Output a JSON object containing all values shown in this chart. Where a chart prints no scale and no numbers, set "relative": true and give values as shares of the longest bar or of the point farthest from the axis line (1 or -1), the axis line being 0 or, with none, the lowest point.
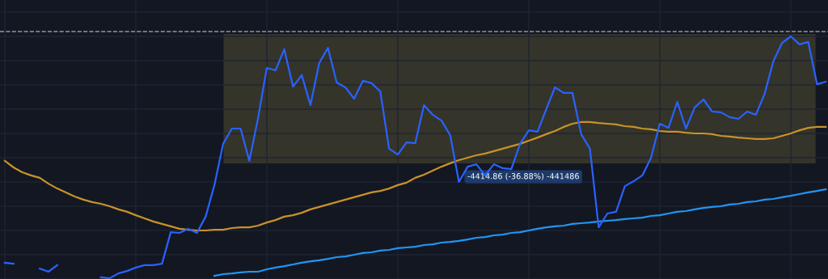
{
  "chart_data": {
    "type": "line",
    "relative": true,
    "grid": true,
    "tick_labels": false,
    "marker": "none",
    "line_style": "solid",
    "categories": [
      null,
      null,
      null,
      null,
      null,
      null,
      null,
      null,
      null,
      null,
      null,
      null,
      null,
      null,
      null,
      null,
      null,
      null,
      null,
      null,
      null,
      null,
      null,
      null,
      null,
      null,
      null,
      null,
      null,
      null,
      null,
      null,
      null,
      null,
      null,
      null,
      null,
      null,
      null,
      null,
      null,
      null,
      null,
      null,
      null,
      null,
      null,
      null,
      null,
      null,
      null,
      null,
      null,
      null,
      null,
      null,
      null,
      null,
      null,
      null,
      null,
      null,
      null,
      null,
      null,
      null,
      null,
      null,
      null,
      null,
      null,
      null,
      null,
      null,
      null,
      null,
      null,
      null,
      null,
      null,
      null,
      null,
      null,
      null,
      null,
      null,
      null,
      null,
      null,
      null,
      null,
      null,
      null,
      null,
      null
    ],
    "series": [
      {
        "color": "#c8922a",
        "values": [
          0.487,
          0.46,
          0.44,
          0.427,
          0.417,
          0.393,
          0.373,
          0.357,
          0.34,
          0.327,
          0.317,
          0.31,
          0.3,
          0.287,
          0.277,
          0.263,
          0.25,
          0.237,
          0.227,
          0.217,
          0.207,
          0.203,
          0.2,
          0.2,
          0.203,
          0.203,
          0.21,
          0.213,
          0.213,
          0.22,
          0.233,
          0.243,
          0.257,
          0.263,
          0.273,
          0.287,
          0.297,
          0.307,
          0.317,
          0.327,
          0.337,
          0.347,
          0.357,
          0.363,
          0.373,
          0.387,
          0.397,
          0.417,
          0.43,
          0.447,
          0.463,
          0.477,
          0.49,
          0.5,
          0.51,
          0.517,
          0.527,
          0.537,
          0.547,
          0.557,
          0.57,
          0.583,
          0.597,
          0.61,
          0.627,
          0.64,
          0.647,
          0.647,
          0.643,
          0.64,
          0.637,
          0.63,
          0.627,
          0.62,
          0.617,
          0.61,
          0.607,
          0.607,
          0.603,
          0.6,
          0.6,
          0.597,
          0.59,
          0.587,
          0.583,
          0.58,
          0.577,
          0.577,
          0.58,
          0.59,
          0.6,
          0.613,
          0.623,
          0.627,
          0.627
        ]
      },
      {
        "color": "#2196f3",
        "values": [
          null,
          null,
          null,
          null,
          null,
          null,
          null,
          null,
          null,
          null,
          null,
          null,
          null,
          null,
          null,
          null,
          null,
          null,
          null,
          null,
          null,
          null,
          null,
          null,
          0.013,
          0.02,
          0.023,
          0.027,
          0.03,
          0.03,
          0.04,
          0.047,
          0.053,
          0.06,
          0.067,
          0.073,
          0.077,
          0.083,
          0.09,
          0.093,
          0.1,
          0.107,
          0.11,
          0.117,
          0.12,
          0.127,
          0.13,
          0.133,
          0.14,
          0.143,
          0.15,
          0.153,
          0.157,
          0.163,
          0.17,
          0.173,
          0.18,
          0.183,
          0.19,
          0.193,
          0.2,
          0.207,
          0.213,
          0.217,
          0.22,
          0.227,
          0.23,
          0.233,
          0.237,
          0.24,
          0.243,
          0.247,
          0.25,
          0.253,
          0.26,
          0.263,
          0.27,
          0.277,
          0.28,
          0.287,
          0.293,
          0.297,
          0.3,
          0.307,
          0.31,
          0.317,
          0.32,
          0.327,
          0.33,
          0.337,
          0.343,
          0.35,
          0.357,
          0.363,
          0.37
        ]
      },
      {
        "color": "#2962ff",
        "values": [
          0.067,
          0.063,
          null,
          null,
          0.043,
          0.03,
          0.057,
          null,
          null,
          null,
          null,
          0.007,
          0.003,
          0.023,
          0.033,
          0.047,
          0.057,
          0.057,
          0.063,
          0.193,
          0.19,
          0.207,
          0.19,
          0.257,
          0.387,
          0.557,
          0.62,
          0.62,
          0.487,
          0.663,
          0.87,
          0.86,
          0.947,
          0.793,
          0.84,
          0.717,
          0.89,
          0.953,
          0.81,
          0.79,
          0.743,
          0.817,
          0.807,
          0.773,
          0.537,
          0.513,
          0.563,
          0.56,
          0.717,
          0.677,
          0.653,
          0.593,
          0.4,
          0.463,
          0.473,
          0.427,
          0.473,
          0.457,
          0.453,
          0.557,
          0.613,
          0.607,
          0.7,
          0.79,
          0.767,
          0.767,
          0.597,
          0.537,
          0.213,
          0.27,
          0.277,
          0.383,
          0.403,
          0.427,
          0.5,
          0.64,
          0.623,
          0.73,
          0.62,
          0.707,
          0.74,
          0.69,
          0.687,
          0.667,
          0.66,
          0.69,
          0.677,
          0.763,
          0.897,
          0.973,
          1,
          0.967,
          0.977,
          0.803,
          0.813
        ]
      }
    ],
    "bands": [
      {
        "axis": "y",
        "from": 0.477,
        "to": 1.01,
        "label": "-4414.86 (-36.88%) -441486",
        "color": "#34342a"
      }
    ],
    "ref_lines": [
      {
        "axis": "y",
        "value": 1.02,
        "color": "#9598a1",
        "line_style": "dashed"
      }
    ]
  }
}
